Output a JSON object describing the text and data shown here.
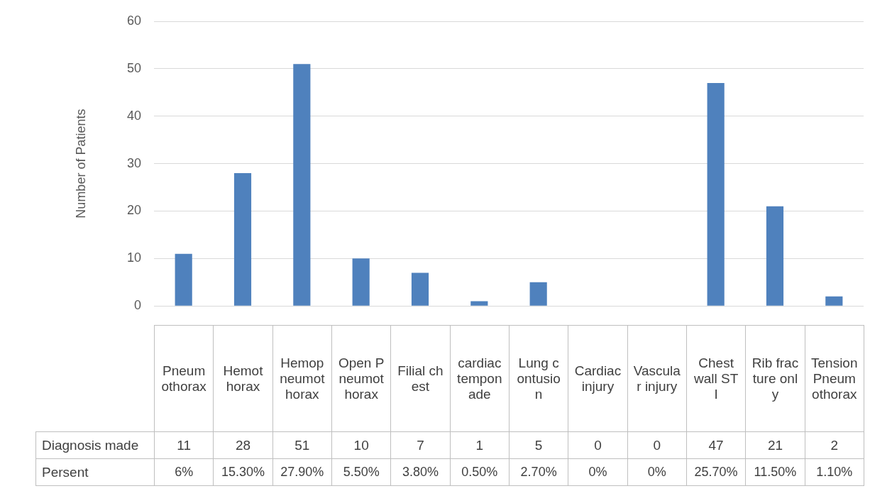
{
  "chart_data": {
    "type": "bar",
    "ylabel": "Number of Patients",
    "categories": [
      "Pneumothorax",
      "Hemothorax",
      "Hemopneumothorax",
      "Open Pneumothorax",
      "Filial chest",
      "cardiac temponade",
      "Lung contusion",
      "Cardiac injury",
      "Vascular injury",
      "Chest wall STI",
      "Rib fracture only",
      "Tension Pneumothorax"
    ],
    "series": [
      {
        "name": "Diagnosis made",
        "color": "#4f81bd",
        "values": [
          11,
          28,
          51,
          10,
          7,
          1,
          5,
          0,
          0,
          47,
          21,
          2
        ]
      }
    ],
    "ylim": [
      0,
      60
    ],
    "yticks": [
      0,
      10,
      20,
      30,
      40,
      50,
      60
    ],
    "grid": "y",
    "legend": false,
    "data_labels": true,
    "annotations": [
      "Persent",
      "6%",
      "15.30%",
      "27.90%",
      "5.50%",
      "3.80%",
      "0.50%",
      "2.70%",
      "0%",
      "0%",
      "25.70%",
      "11.50%",
      "1.10%"
    ]
  }
}
